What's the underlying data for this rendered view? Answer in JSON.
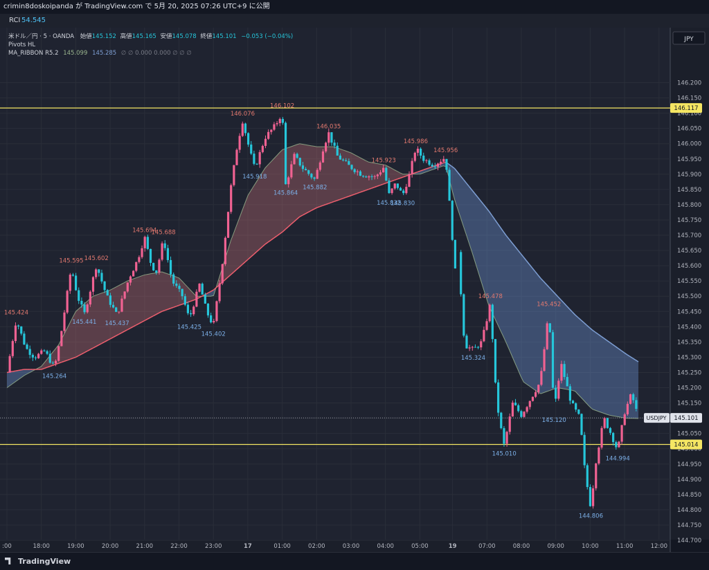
{
  "header": {
    "publisher_line": "crimin8doskoipanda が TradingView.com で 5月 20, 2025 07:26 UTC+9 に公開"
  },
  "rci_panel": {
    "label": "RCI",
    "value": "54.545"
  },
  "legend": {
    "symbol": "米ドル／円 · 5 · OANDA",
    "open_label": "始値",
    "open": "145.152",
    "high_label": "高値",
    "high": "145.165",
    "low_label": "安値",
    "low": "145.078",
    "close_label": "終値",
    "close": "145.101",
    "change": "−0.053 (−0.04%)",
    "pivots": "Pivots HL",
    "ribbon_name": "MA_RIBBON R5.2",
    "ribbon_v1": "145.099",
    "ribbon_v2": "145.285",
    "ribbon_rest": "∅ ∅ 0.000 0.000 ∅ ∅ ∅"
  },
  "footer": {
    "brand": "TradingView"
  },
  "colors": {
    "bull": "#f06292",
    "bear": "#26c6da",
    "fast_ma": "#9ab58e",
    "slow_ma_up": "#ef5f6e",
    "slow_ma_down": "#7e9fd4",
    "level": "#f5e663",
    "pivot_high": "#e3796f",
    "pivot_low": "#7cb0e8"
  },
  "chart_data": {
    "type": "candlestick",
    "symbol": "USDJPY",
    "currency": "JPY",
    "timeframe": "5",
    "ylim": [
      144.65,
      146.22
    ],
    "y_ticks": [
      "144.700",
      "144.750",
      "144.800",
      "144.850",
      "144.900",
      "144.950",
      "145.000",
      "145.050",
      "145.100",
      "145.150",
      "145.200",
      "145.250",
      "145.300",
      "145.350",
      "145.400",
      "145.450",
      "145.500",
      "145.550",
      "145.600",
      "145.650",
      "145.700",
      "145.750",
      "145.800",
      "145.850",
      "145.900",
      "145.950",
      "146.000",
      "146.050",
      "146.100",
      "146.150",
      "146.200"
    ],
    "x_ticks": [
      {
        "t": 0,
        "label": ":00"
      },
      {
        "t": 1,
        "label": "18:00"
      },
      {
        "t": 2,
        "label": "19:00"
      },
      {
        "t": 3,
        "label": "20:00"
      },
      {
        "t": 4,
        "label": "21:00"
      },
      {
        "t": 5,
        "label": "22:00"
      },
      {
        "t": 6,
        "label": "23:00"
      },
      {
        "t": 7,
        "label": "17"
      },
      {
        "t": 8,
        "label": "01:00"
      },
      {
        "t": 9,
        "label": "02:00"
      },
      {
        "t": 10,
        "label": "03:00"
      },
      {
        "t": 11,
        "label": "04:00"
      },
      {
        "t": 12,
        "label": "05:00"
      },
      {
        "t": 12.95,
        "label": "19"
      },
      {
        "t": 13.95,
        "label": "07:00"
      },
      {
        "t": 14.95,
        "label": "08:00"
      },
      {
        "t": 15.95,
        "label": "09:00"
      },
      {
        "t": 16.95,
        "label": "10:00"
      },
      {
        "t": 17.95,
        "label": "11:00"
      },
      {
        "t": 18.95,
        "label": "12:00"
      }
    ],
    "horizontal_levels": [
      {
        "value": 146.117,
        "label": "146.117"
      },
      {
        "value": 145.014,
        "label": "145.014"
      }
    ],
    "last_price": {
      "value": 145.101,
      "label": "145.101",
      "tag": "USDJPY"
    },
    "pivots": [
      {
        "t": 0.27,
        "price": 145.424,
        "kind": "high",
        "label": "145.424"
      },
      {
        "t": 1.38,
        "price": 145.264,
        "kind": "low",
        "label": "145.264"
      },
      {
        "t": 1.87,
        "price": 145.595,
        "kind": "high",
        "label": "145.595"
      },
      {
        "t": 2.25,
        "price": 145.441,
        "kind": "low",
        "label": "145.441"
      },
      {
        "t": 2.6,
        "price": 145.602,
        "kind": "high",
        "label": "145.602"
      },
      {
        "t": 3.2,
        "price": 145.437,
        "kind": "low",
        "label": "145.437"
      },
      {
        "t": 4.0,
        "price": 145.694,
        "kind": "high",
        "label": "145.694"
      },
      {
        "t": 4.55,
        "price": 145.688,
        "kind": "high",
        "label": "145.688"
      },
      {
        "t": 5.3,
        "price": 145.425,
        "kind": "low",
        "label": "145.425"
      },
      {
        "t": 6.0,
        "price": 145.402,
        "kind": "low",
        "label": "145.402"
      },
      {
        "t": 6.85,
        "price": 146.076,
        "kind": "high",
        "label": "146.076"
      },
      {
        "t": 7.2,
        "price": 145.918,
        "kind": "low",
        "label": "145.918"
      },
      {
        "t": 8.0,
        "price": 146.102,
        "kind": "high",
        "label": "146.102"
      },
      {
        "t": 8.1,
        "price": 145.864,
        "kind": "low",
        "label": "145.864"
      },
      {
        "t": 8.95,
        "price": 145.882,
        "kind": "low",
        "label": "145.882"
      },
      {
        "t": 9.35,
        "price": 146.035,
        "kind": "high",
        "label": "146.035"
      },
      {
        "t": 10.95,
        "price": 145.923,
        "kind": "high",
        "label": "145.923"
      },
      {
        "t": 11.1,
        "price": 145.832,
        "kind": "low",
        "label": "145.832"
      },
      {
        "t": 11.5,
        "price": 145.83,
        "kind": "low",
        "label": "145.830"
      },
      {
        "t": 11.88,
        "price": 145.986,
        "kind": "high",
        "label": "145.986"
      },
      {
        "t": 12.75,
        "price": 145.956,
        "kind": "high",
        "label": "145.956"
      },
      {
        "t": 13.55,
        "price": 145.324,
        "kind": "low",
        "label": "145.324"
      },
      {
        "t": 14.05,
        "price": 145.478,
        "kind": "high",
        "label": "145.478"
      },
      {
        "t": 14.45,
        "price": 145.01,
        "kind": "low",
        "label": "145.010"
      },
      {
        "t": 15.75,
        "price": 145.452,
        "kind": "high",
        "label": "145.452"
      },
      {
        "t": 15.9,
        "price": 145.12,
        "kind": "low",
        "label": "145.120"
      },
      {
        "t": 16.97,
        "price": 144.806,
        "kind": "low",
        "label": "144.806"
      },
      {
        "t": 17.75,
        "price": 144.994,
        "kind": "low",
        "label": "144.994"
      }
    ],
    "path": [
      [
        0.0,
        145.25
      ],
      [
        0.27,
        145.424
      ],
      [
        0.55,
        145.33
      ],
      [
        0.8,
        145.3
      ],
      [
        1.1,
        145.32
      ],
      [
        1.38,
        145.264
      ],
      [
        1.55,
        145.36
      ],
      [
        1.87,
        145.595
      ],
      [
        2.05,
        145.5
      ],
      [
        2.25,
        145.441
      ],
      [
        2.6,
        145.602
      ],
      [
        2.9,
        145.5
      ],
      [
        3.2,
        145.437
      ],
      [
        3.55,
        145.56
      ],
      [
        3.8,
        145.62
      ],
      [
        4.0,
        145.694
      ],
      [
        4.2,
        145.6
      ],
      [
        4.35,
        145.58
      ],
      [
        4.55,
        145.688
      ],
      [
        4.8,
        145.55
      ],
      [
        5.1,
        145.5
      ],
      [
        5.3,
        145.425
      ],
      [
        5.6,
        145.54
      ],
      [
        5.8,
        145.45
      ],
      [
        6.0,
        145.402
      ],
      [
        6.25,
        145.6
      ],
      [
        6.5,
        145.85
      ],
      [
        6.7,
        146.0
      ],
      [
        6.85,
        146.076
      ],
      [
        7.05,
        145.98
      ],
      [
        7.2,
        145.918
      ],
      [
        7.5,
        146.02
      ],
      [
        7.8,
        146.06
      ],
      [
        8.0,
        146.102
      ],
      [
        8.1,
        145.864
      ],
      [
        8.35,
        145.96
      ],
      [
        8.6,
        145.92
      ],
      [
        8.95,
        145.882
      ],
      [
        9.2,
        145.99
      ],
      [
        9.35,
        146.035
      ],
      [
        9.6,
        145.96
      ],
      [
        9.9,
        145.93
      ],
      [
        10.3,
        145.9
      ],
      [
        10.7,
        145.89
      ],
      [
        10.95,
        145.923
      ],
      [
        11.1,
        145.832
      ],
      [
        11.3,
        145.87
      ],
      [
        11.5,
        145.83
      ],
      [
        11.7,
        145.9
      ],
      [
        11.88,
        145.986
      ],
      [
        12.1,
        145.95
      ],
      [
        12.4,
        145.93
      ],
      [
        12.75,
        145.956
      ],
      [
        12.9,
        145.75
      ],
      [
        13.05,
        145.55
      ],
      [
        13.1,
        145.66
      ],
      [
        13.3,
        145.34
      ],
      [
        13.55,
        145.324
      ],
      [
        13.8,
        145.35
      ],
      [
        14.05,
        145.478
      ],
      [
        14.2,
        145.2
      ],
      [
        14.3,
        145.1
      ],
      [
        14.45,
        145.01
      ],
      [
        14.7,
        145.15
      ],
      [
        14.95,
        145.11
      ],
      [
        15.25,
        145.17
      ],
      [
        15.5,
        145.22
      ],
      [
        15.75,
        145.452
      ],
      [
        15.9,
        145.12
      ],
      [
        16.1,
        145.28
      ],
      [
        16.4,
        145.15
      ],
      [
        16.65,
        145.1
      ],
      [
        16.8,
        144.92
      ],
      [
        16.97,
        144.806
      ],
      [
        17.1,
        144.95
      ],
      [
        17.35,
        145.1
      ],
      [
        17.55,
        145.05
      ],
      [
        17.75,
        144.994
      ],
      [
        17.95,
        145.12
      ],
      [
        18.15,
        145.18
      ],
      [
        18.35,
        145.101
      ]
    ],
    "ribbon_fast": [
      [
        0.0,
        145.2
      ],
      [
        0.5,
        145.24
      ],
      [
        1.0,
        145.27
      ],
      [
        1.5,
        145.34
      ],
      [
        2.0,
        145.45
      ],
      [
        2.5,
        145.5
      ],
      [
        3.0,
        145.52
      ],
      [
        3.5,
        145.55
      ],
      [
        4.0,
        145.57
      ],
      [
        4.5,
        145.58
      ],
      [
        5.0,
        145.56
      ],
      [
        5.5,
        145.5
      ],
      [
        6.0,
        145.5
      ],
      [
        6.5,
        145.68
      ],
      [
        7.0,
        145.83
      ],
      [
        7.5,
        145.92
      ],
      [
        8.0,
        145.98
      ],
      [
        8.5,
        146.0
      ],
      [
        9.0,
        145.99
      ],
      [
        9.5,
        145.99
      ],
      [
        10.0,
        145.97
      ],
      [
        10.5,
        145.94
      ],
      [
        11.0,
        145.93
      ],
      [
        11.5,
        145.9
      ],
      [
        12.0,
        145.9
      ],
      [
        12.5,
        145.92
      ],
      [
        12.75,
        145.93
      ],
      [
        13.0,
        145.82
      ],
      [
        13.5,
        145.65
      ],
      [
        14.0,
        145.47
      ],
      [
        14.5,
        145.35
      ],
      [
        15.0,
        145.22
      ],
      [
        15.5,
        145.18
      ],
      [
        16.0,
        145.2
      ],
      [
        16.5,
        145.19
      ],
      [
        17.0,
        145.13
      ],
      [
        17.5,
        145.11
      ],
      [
        18.0,
        145.1
      ],
      [
        18.35,
        145.099
      ]
    ],
    "ribbon_slow": [
      [
        0.0,
        145.25
      ],
      [
        0.5,
        145.26
      ],
      [
        1.0,
        145.26
      ],
      [
        1.5,
        145.28
      ],
      [
        2.0,
        145.3
      ],
      [
        2.5,
        145.33
      ],
      [
        3.0,
        145.36
      ],
      [
        3.5,
        145.39
      ],
      [
        4.0,
        145.42
      ],
      [
        4.5,
        145.45
      ],
      [
        5.0,
        145.47
      ],
      [
        5.5,
        145.49
      ],
      [
        6.0,
        145.52
      ],
      [
        6.5,
        145.57
      ],
      [
        7.0,
        145.62
      ],
      [
        7.5,
        145.67
      ],
      [
        8.0,
        145.71
      ],
      [
        8.5,
        145.76
      ],
      [
        9.0,
        145.79
      ],
      [
        9.5,
        145.81
      ],
      [
        10.0,
        145.83
      ],
      [
        10.5,
        145.85
      ],
      [
        11.0,
        145.87
      ],
      [
        11.5,
        145.89
      ],
      [
        12.0,
        145.91
      ],
      [
        12.5,
        145.93
      ],
      [
        12.75,
        145.94
      ],
      [
        13.0,
        145.92
      ],
      [
        13.5,
        145.85
      ],
      [
        14.0,
        145.78
      ],
      [
        14.5,
        145.7
      ],
      [
        15.0,
        145.63
      ],
      [
        15.5,
        145.56
      ],
      [
        16.0,
        145.5
      ],
      [
        16.5,
        145.44
      ],
      [
        17.0,
        145.39
      ],
      [
        17.5,
        145.35
      ],
      [
        18.0,
        145.31
      ],
      [
        18.35,
        145.285
      ]
    ]
  }
}
